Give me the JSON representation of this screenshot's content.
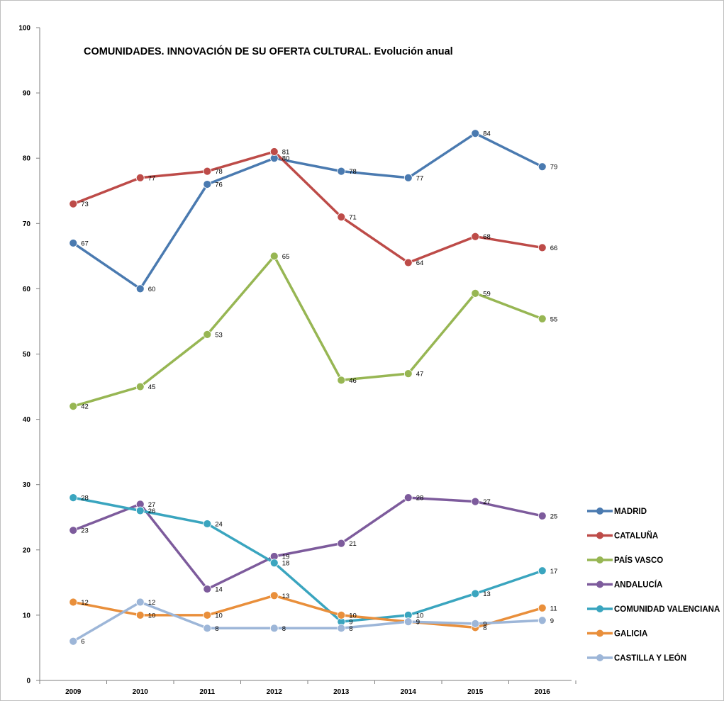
{
  "chart_data": {
    "type": "line",
    "title": "COMUNIDADES. INNOVACIÓN DE SU OFERTA CULTURAL. Evolución anual",
    "xlabel": "",
    "ylabel": "",
    "categories": [
      "2009",
      "2010",
      "2011",
      "2012",
      "2013",
      "2014",
      "2015",
      "2016"
    ],
    "ylim": [
      0,
      100
    ],
    "yticks": [
      "0",
      "10",
      "20",
      "30",
      "40",
      "50",
      "60",
      "70",
      "80",
      "90",
      "100"
    ],
    "grid": false,
    "legend": "right",
    "series": [
      {
        "name": "MADRID",
        "color": "#4a7ab0",
        "values": [
          67,
          60,
          76,
          80,
          78,
          77,
          84,
          79
        ]
      },
      {
        "name": "CATALUÑA",
        "color": "#bd4b48",
        "values": [
          73,
          77,
          78,
          81,
          71,
          64,
          68,
          66
        ]
      },
      {
        "name": "PAÍS VASCO",
        "color": "#97b653",
        "values": [
          42,
          45,
          53,
          65,
          46,
          47,
          59,
          55
        ]
      },
      {
        "name": "ANDALUCÍA",
        "color": "#7d5b9c",
        "values": [
          23,
          27,
          14,
          19,
          21,
          28,
          27,
          25
        ]
      },
      {
        "name": "COMUNIDAD VALENCIANA",
        "color": "#3aa5bf",
        "values": [
          28,
          26,
          24,
          18,
          9,
          10,
          13,
          17
        ]
      },
      {
        "name": "GALICIA",
        "color": "#e98f3b",
        "values": [
          12,
          10,
          10,
          13,
          10,
          9,
          8,
          11
        ]
      },
      {
        "name": "CASTILLA Y LEÓN",
        "color": "#9db6d8",
        "values": [
          6,
          12,
          8,
          8,
          8,
          9,
          9,
          9
        ]
      }
    ],
    "plotted_values": [
      [
        67,
        60,
        76,
        80,
        78,
        77,
        83.8,
        78.7
      ],
      [
        73,
        77,
        78,
        81,
        71,
        64,
        68,
        66.3
      ],
      [
        42,
        45,
        53,
        65,
        46,
        47,
        59.3,
        55.4
      ],
      [
        23,
        27,
        14,
        19,
        21,
        28,
        27.4,
        25.2
      ],
      [
        28,
        26,
        24,
        18,
        9,
        10,
        13.3,
        16.8
      ],
      [
        12,
        10,
        10,
        13,
        10,
        9,
        8.1,
        11.1
      ],
      [
        6,
        12,
        8,
        8,
        8,
        9,
        8.7,
        9.2
      ]
    ]
  }
}
